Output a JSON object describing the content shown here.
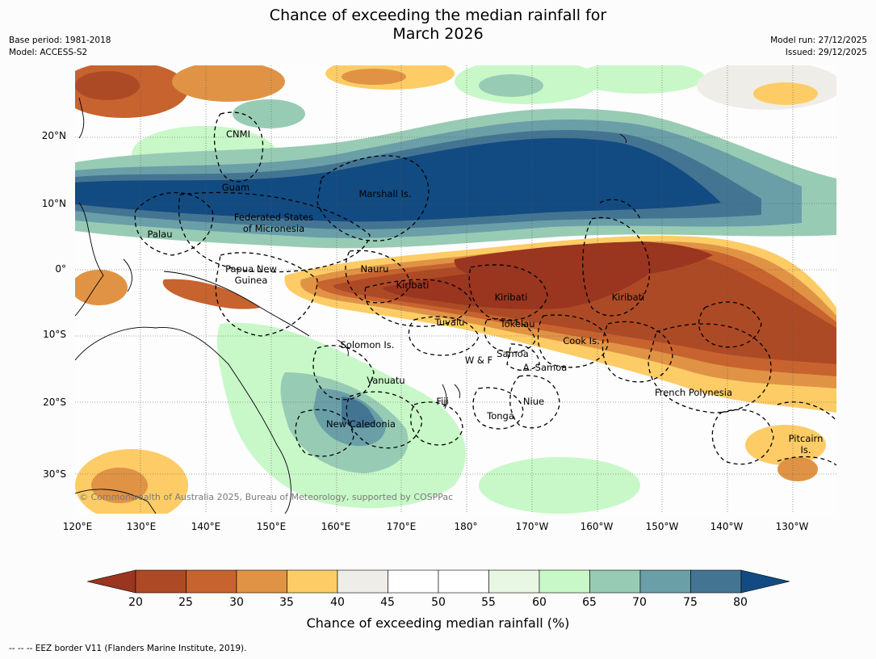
{
  "title_line1": "Chance of exceeding the median rainfall for",
  "title_line2": "March 2026",
  "meta_left": [
    "Base period: 1981-2018",
    "Model: ACCESS-S2"
  ],
  "meta_right": [
    "Model run: 27/12/2025",
    "Issued: 29/12/2025"
  ],
  "lat_labels": [
    "20°N",
    "10°N",
    "0°",
    "10°S",
    "20°S",
    "30°S"
  ],
  "lon_labels": [
    "120°E",
    "130°E",
    "140°E",
    "150°E",
    "160°E",
    "170°E",
    "180°",
    "170°W",
    "160°W",
    "150°W",
    "140°W",
    "130°W"
  ],
  "regions": {
    "cnmi": "CNMI",
    "guam": "Guam",
    "marshall": "Marshall Is.",
    "fsm1": "Federated States",
    "fsm2": "of Micronesia",
    "palau": "Palau",
    "png1": "Papua New",
    "png2": "Guinea",
    "nauru": "Nauru",
    "kiribati_w": "Kiribati",
    "kiribati_c": "Kiribati",
    "kiribati_e": "Kiribati",
    "tuvalu": "Tuvalu",
    "tokelau": "Tokelau",
    "cook": "Cook Is.",
    "solomon": "Solomon Is.",
    "samoa": "Samoa",
    "wf": "W & F",
    "asamoa": "A. Samoa",
    "vanuatu": "Vanuatu",
    "fiji": "Fiji",
    "niue": "Niue",
    "tonga": "Tonga",
    "fp": "French Polynesia",
    "newcal": "New Caledonia",
    "pitcairn1": "Pitcairn",
    "pitcairn2": "Is."
  },
  "copyright": "© Commonwealth of Australia 2025, Bureau of Meteorology, supported by COSPPac",
  "colorbar": {
    "ticks": [
      "20",
      "25",
      "30",
      "35",
      "40",
      "45",
      "50",
      "55",
      "60",
      "65",
      "70",
      "75",
      "80"
    ],
    "colors": [
      "#ad4a26",
      "#c7632f",
      "#e09345",
      "#fdcc66",
      "#efede8",
      "#ffffff",
      "#ffffff",
      "#e8f6e4",
      "#c8f8c8",
      "#98cbb4",
      "#6a9fa8",
      "#437593"
    ],
    "under_color": "#9a3520",
    "over_color": "#124b82",
    "label": "Chance of exceeding median rainfall (%)"
  },
  "footer": "-- -- -- EEZ border V11 (Flanders Marine Institute, 2019)."
}
